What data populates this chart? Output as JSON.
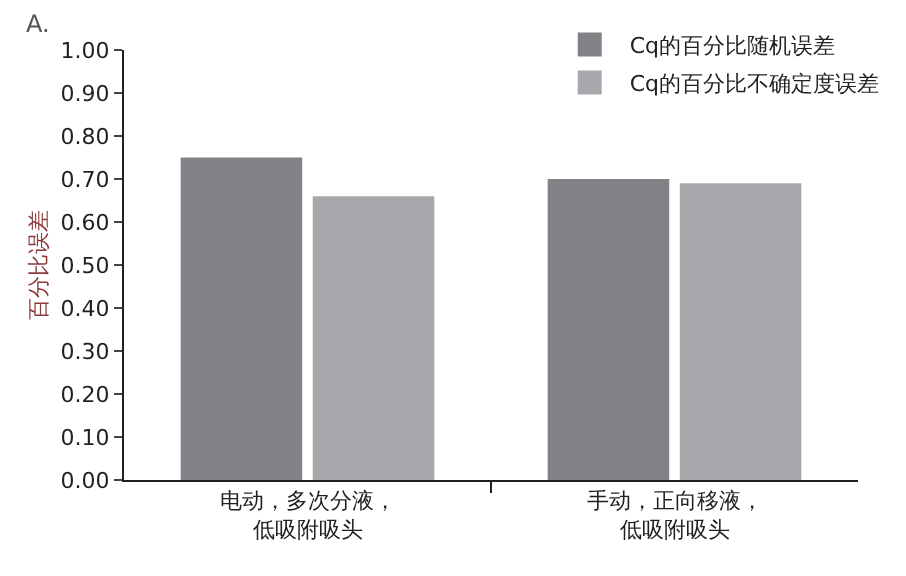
{
  "chart_data": {
    "type": "bar",
    "ylabel": "百分比误差",
    "categories": [
      "电动，多次分液，低吸附吸头",
      "手动，正向移液，低吸附吸头"
    ],
    "series": [
      {
        "name": "Cq的百分比随机误差",
        "color": "#818285",
        "values": [
          0.75,
          0.7
        ]
      },
      {
        "name": "Cq的百分比不确定度误差",
        "color": "#a7a8ab",
        "values": [
          0.66,
          0.69
        ]
      }
    ],
    "ylim": [
      0,
      1.0
    ],
    "yticks": [
      {
        "value": 0,
        "label": "0.00"
      },
      {
        "value": 0.1,
        "label": "0.10"
      },
      {
        "value": 0.2,
        "label": "0.20"
      },
      {
        "value": 0.3,
        "label": "0.30"
      },
      {
        "value": 0.4,
        "label": "0.40"
      },
      {
        "value": 0.5,
        "label": "0.50"
      },
      {
        "value": 0.6,
        "label": "0.60"
      },
      {
        "value": 0.7,
        "label": "0.70"
      },
      {
        "value": 0.8,
        "label": "0.80"
      },
      {
        "value": 0.9,
        "label": "0.90"
      },
      {
        "value": 1.0,
        "label": "1.00"
      }
    ],
    "legend": "top right",
    "annotations": [
      "A."
    ]
  }
}
